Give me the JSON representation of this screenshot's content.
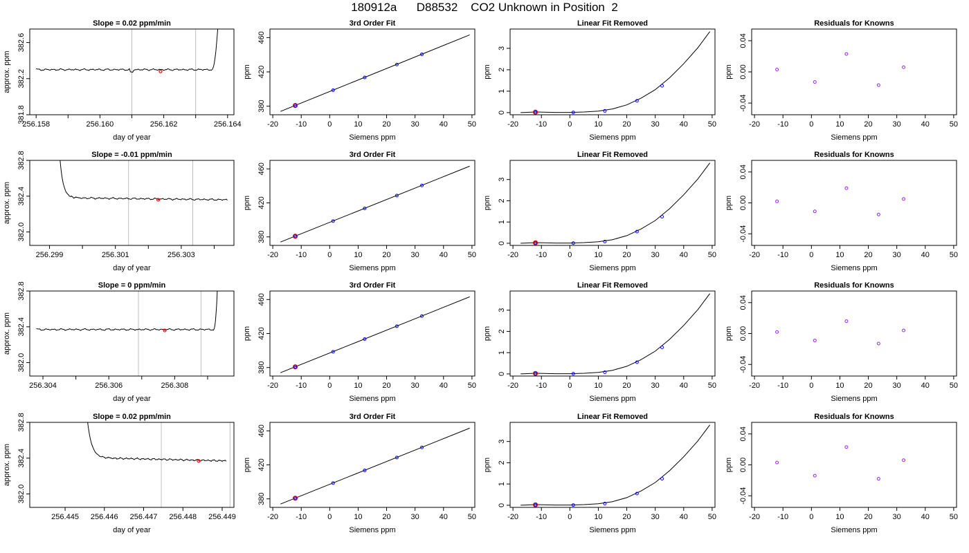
{
  "header": {
    "title": "180912a      D88532    CO2 Unknown in Position  2"
  },
  "colors": {
    "axis": "#000000",
    "curve": "#000000",
    "guide": "#bebebe",
    "known_point": "#0000ff",
    "resid_point": "#a020f0",
    "highlight": "#ff0000"
  },
  "chart_data": [
    {
      "panel": "r1c1",
      "type": "line",
      "title": "Slope =  0.02  ppm/min",
      "xlabel": "day of year",
      "ylabel": "approx. ppm",
      "xlim": [
        256.1578,
        256.1642
      ],
      "ylim": [
        381.8,
        382.75
      ],
      "xticks": [
        "256.158",
        "256.160",
        "256.162",
        "256.164"
      ],
      "xticks_minor": [
        256.159,
        256.161,
        256.163
      ],
      "yticks": [
        "381.8",
        "382.2",
        "382.6"
      ],
      "vlines": [
        256.161,
        256.163
      ],
      "series": [
        {
          "type": "noisy-trace",
          "start": [
            256.158,
            382.31
          ],
          "plateau": 382.3,
          "amp": 0.012,
          "rise_start": 256.1635,
          "rise_end": 256.1637,
          "rise_to": 382.8,
          "dip": [
            256.161,
            -0.03
          ]
        }
      ],
      "highlight": [
        256.1619,
        382.28
      ]
    },
    {
      "panel": "r1c2",
      "type": "line",
      "title": "3rd Order Fit",
      "xlabel": "Siemens ppm",
      "ylabel": "ppm",
      "xlim": [
        -21,
        51
      ],
      "ylim": [
        370,
        470
      ],
      "xticks": [
        "-20",
        "-10",
        "0",
        "10",
        "20",
        "30",
        "40",
        "50"
      ],
      "yticks": [
        "380",
        "420",
        "460"
      ],
      "line": [
        [
          -17.3,
          373.9
        ],
        [
          49.2,
          463.2
        ]
      ],
      "points": [
        [
          -12.1,
          380.8
        ],
        [
          1.2,
          398.6
        ],
        [
          12.3,
          413.5
        ],
        [
          23.6,
          428.6
        ],
        [
          32.4,
          440.5
        ]
      ],
      "highlight": [
        -12.1,
        380.8
      ]
    },
    {
      "panel": "r1c3",
      "type": "line",
      "title": "Linear Fit Removed",
      "xlabel": "Siemens ppm",
      "ylabel": "ppm",
      "xlim": [
        -21,
        51
      ],
      "ylim": [
        -0.1,
        3.9
      ],
      "xticks": [
        "-20",
        "-10",
        "0",
        "10",
        "20",
        "30",
        "40",
        "50"
      ],
      "yticks": [
        "0",
        "1",
        "2",
        "3"
      ],
      "curve": [
        [
          -17.3,
          0.0
        ],
        [
          -12,
          0.03
        ],
        [
          -5,
          0.01
        ],
        [
          0,
          0.01
        ],
        [
          5,
          0.03
        ],
        [
          10,
          0.07
        ],
        [
          15,
          0.17
        ],
        [
          20,
          0.36
        ],
        [
          25,
          0.67
        ],
        [
          30,
          1.07
        ],
        [
          35,
          1.62
        ],
        [
          40,
          2.28
        ],
        [
          45,
          3.03
        ],
        [
          49.2,
          3.78
        ]
      ],
      "points": [
        [
          -12.1,
          0.02
        ],
        [
          1.2,
          0.01
        ],
        [
          12.3,
          0.08
        ],
        [
          23.6,
          0.55
        ],
        [
          32.4,
          1.25
        ]
      ],
      "highlight": [
        -12.1,
        0.02
      ]
    },
    {
      "panel": "r1c4",
      "type": "scatter",
      "title": "Residuals for Knowns",
      "xlabel": "Siemens ppm",
      "ylabel": "ppm",
      "xlim": [
        -21,
        51
      ],
      "ylim": [
        -0.055,
        0.055
      ],
      "xticks": [
        "-20",
        "-10",
        "0",
        "10",
        "20",
        "30",
        "40",
        "50"
      ],
      "yticks": [
        "-0.04",
        "0.00",
        "0.04"
      ],
      "points": [
        [
          -12.1,
          0.003
        ],
        [
          1.2,
          -0.013
        ],
        [
          12.3,
          0.023
        ],
        [
          23.6,
          -0.017
        ],
        [
          32.4,
          0.006
        ]
      ]
    },
    {
      "panel": "r2c1",
      "type": "line",
      "title": "Slope =  -0.01  ppm/min",
      "xlabel": "day of year",
      "ylabel": "approx. ppm",
      "xlim": [
        256.2984,
        256.3046
      ],
      "ylim": [
        381.85,
        382.8
      ],
      "xticks": [
        "256.299",
        "256.301",
        "256.303"
      ],
      "xticks_minor": [
        256.3,
        256.302,
        256.304
      ],
      "yticks": [
        "382.0",
        "382.4",
        "382.8"
      ],
      "vlines": [
        256.3014,
        256.30335
      ],
      "series": [
        {
          "type": "decay-trace",
          "start_x": 256.2993,
          "start_y": 382.9,
          "decay_end": 256.2998,
          "plateau": 382.38,
          "end_plateau": 382.36,
          "amp": 0.012,
          "end": 256.3044
        }
      ],
      "highlight": [
        256.3023,
        382.36
      ]
    },
    {
      "panel": "r2c2",
      "type": "line",
      "title": "3rd Order Fit",
      "xlabel": "Siemens ppm",
      "ylabel": "ppm",
      "xlim": [
        -21,
        51
      ],
      "ylim": [
        370,
        470
      ],
      "xticks": [
        "-20",
        "-10",
        "0",
        "10",
        "20",
        "30",
        "40",
        "50"
      ],
      "yticks": [
        "380",
        "420",
        "460"
      ],
      "line": [
        [
          -17.3,
          373.9
        ],
        [
          49.2,
          463.2
        ]
      ],
      "points": [
        [
          -12.1,
          380.8
        ],
        [
          1.2,
          398.6
        ],
        [
          12.3,
          413.5
        ],
        [
          23.6,
          428.6
        ],
        [
          32.4,
          440.5
        ]
      ],
      "highlight": [
        -12.1,
        380.8
      ]
    },
    {
      "panel": "r2c3",
      "type": "line",
      "title": "Linear Fit Removed",
      "xlabel": "Siemens ppm",
      "ylabel": "ppm",
      "xlim": [
        -21,
        51
      ],
      "ylim": [
        -0.1,
        3.9
      ],
      "xticks": [
        "-20",
        "-10",
        "0",
        "10",
        "20",
        "30",
        "40",
        "50"
      ],
      "yticks": [
        "0",
        "1",
        "2",
        "3"
      ],
      "curve": [
        [
          -17.3,
          0.0
        ],
        [
          -12,
          0.03
        ],
        [
          -5,
          0.01
        ],
        [
          0,
          0.01
        ],
        [
          5,
          0.03
        ],
        [
          10,
          0.07
        ],
        [
          15,
          0.17
        ],
        [
          20,
          0.36
        ],
        [
          25,
          0.67
        ],
        [
          30,
          1.07
        ],
        [
          35,
          1.62
        ],
        [
          40,
          2.28
        ],
        [
          45,
          3.03
        ],
        [
          49.2,
          3.78
        ]
      ],
      "points": [
        [
          -12.1,
          0.02
        ],
        [
          1.2,
          0.01
        ],
        [
          12.3,
          0.08
        ],
        [
          23.6,
          0.55
        ],
        [
          32.4,
          1.25
        ]
      ],
      "highlight": [
        -12.1,
        0.02
      ]
    },
    {
      "panel": "r2c4",
      "type": "scatter",
      "title": "Residuals for Knowns",
      "xlabel": "Siemens ppm",
      "ylabel": "ppm",
      "xlim": [
        -21,
        51
      ],
      "ylim": [
        -0.055,
        0.055
      ],
      "xticks": [
        "-20",
        "-10",
        "0",
        "10",
        "20",
        "30",
        "40",
        "50"
      ],
      "yticks": [
        "-0.04",
        "0.00",
        "0.04"
      ],
      "points": [
        [
          -12.1,
          0.002
        ],
        [
          1.2,
          -0.011
        ],
        [
          12.3,
          0.019
        ],
        [
          23.6,
          -0.015
        ],
        [
          32.4,
          0.005
        ]
      ]
    },
    {
      "panel": "r3c1",
      "type": "line",
      "title": "Slope =  0  ppm/min",
      "xlabel": "day of year",
      "ylabel": "approx. ppm",
      "xlim": [
        256.3036,
        256.3098
      ],
      "ylim": [
        381.85,
        382.8
      ],
      "xticks": [
        "256.304",
        "256.306",
        "256.308"
      ],
      "xticks_minor": [
        256.305,
        256.307,
        256.309
      ],
      "yticks": [
        "382.0",
        "382.4",
        "382.8"
      ],
      "vlines": [
        256.3069,
        256.3088
      ],
      "series": [
        {
          "type": "noisy-trace",
          "start": [
            256.3038,
            382.38
          ],
          "plateau": 382.37,
          "amp": 0.012,
          "rise_start": 256.30918,
          "rise_end": 256.3093,
          "rise_to": 382.85
        }
      ],
      "highlight": [
        256.3077,
        382.36
      ]
    },
    {
      "panel": "r3c2",
      "type": "line",
      "title": "3rd Order Fit",
      "xlabel": "Siemens ppm",
      "ylabel": "ppm",
      "xlim": [
        -21,
        51
      ],
      "ylim": [
        370,
        470
      ],
      "xticks": [
        "-20",
        "-10",
        "0",
        "10",
        "20",
        "30",
        "40",
        "50"
      ],
      "yticks": [
        "380",
        "420",
        "460"
      ],
      "line": [
        [
          -17.3,
          373.9
        ],
        [
          49.2,
          463.2
        ]
      ],
      "points": [
        [
          -12.1,
          380.8
        ],
        [
          1.2,
          398.6
        ],
        [
          12.3,
          413.5
        ],
        [
          23.6,
          428.6
        ],
        [
          32.4,
          440.5
        ]
      ],
      "highlight": [
        -12.1,
        380.8
      ]
    },
    {
      "panel": "r3c3",
      "type": "line",
      "title": "Linear Fit Removed",
      "xlabel": "Siemens ppm",
      "ylabel": "ppm",
      "xlim": [
        -21,
        51
      ],
      "ylim": [
        -0.1,
        3.9
      ],
      "xticks": [
        "-20",
        "-10",
        "0",
        "10",
        "20",
        "30",
        "40",
        "50"
      ],
      "yticks": [
        "0",
        "1",
        "2",
        "3"
      ],
      "curve": [
        [
          -17.3,
          0.0
        ],
        [
          -12,
          0.03
        ],
        [
          -5,
          0.01
        ],
        [
          0,
          0.01
        ],
        [
          5,
          0.03
        ],
        [
          10,
          0.07
        ],
        [
          15,
          0.17
        ],
        [
          20,
          0.36
        ],
        [
          25,
          0.67
        ],
        [
          30,
          1.07
        ],
        [
          35,
          1.62
        ],
        [
          40,
          2.28
        ],
        [
          45,
          3.03
        ],
        [
          49.2,
          3.78
        ]
      ],
      "points": [
        [
          -12.1,
          0.02
        ],
        [
          1.2,
          0.01
        ],
        [
          12.3,
          0.08
        ],
        [
          23.6,
          0.55
        ],
        [
          32.4,
          1.25
        ]
      ],
      "highlight": [
        -12.1,
        0.02
      ]
    },
    {
      "panel": "r3c4",
      "type": "scatter",
      "title": "Residuals for Knowns",
      "xlabel": "Siemens ppm",
      "ylabel": "ppm",
      "xlim": [
        -21,
        51
      ],
      "ylim": [
        -0.055,
        0.055
      ],
      "xticks": [
        "-20",
        "-10",
        "0",
        "10",
        "20",
        "30",
        "40",
        "50"
      ],
      "yticks": [
        "-0.04",
        "0.00",
        "0.04"
      ],
      "points": [
        [
          -12.1,
          0.002
        ],
        [
          1.2,
          -0.009
        ],
        [
          12.3,
          0.016
        ],
        [
          23.6,
          -0.013
        ],
        [
          32.4,
          0.004
        ]
      ]
    },
    {
      "panel": "r4c1",
      "type": "line",
      "title": "Slope =  0.02  ppm/min",
      "xlabel": "day of year",
      "ylabel": "approx. ppm",
      "xlim": [
        256.4441,
        256.4493
      ],
      "ylim": [
        381.85,
        382.8
      ],
      "xticks": [
        "256.445",
        "256.446",
        "256.447",
        "256.448",
        "256.449"
      ],
      "xticks_minor": [],
      "yticks": [
        "382.0",
        "382.4",
        "382.8"
      ],
      "vlines": [
        256.44745,
        256.4492
      ],
      "series": [
        {
          "type": "decay-trace",
          "start_x": 256.44555,
          "start_y": 382.9,
          "decay_end": 256.4461,
          "plateau": 382.4,
          "end_plateau": 382.37,
          "amp": 0.012,
          "end": 256.4491
        }
      ],
      "highlight": [
        256.4484,
        382.37
      ]
    },
    {
      "panel": "r4c2",
      "type": "line",
      "title": "3rd Order Fit",
      "xlabel": "Siemens ppm",
      "ylabel": "ppm",
      "xlim": [
        -21,
        51
      ],
      "ylim": [
        370,
        470
      ],
      "xticks": [
        "-20",
        "-10",
        "0",
        "10",
        "20",
        "30",
        "40",
        "50"
      ],
      "yticks": [
        "380",
        "420",
        "460"
      ],
      "line": [
        [
          -17.3,
          373.9
        ],
        [
          49.2,
          463.2
        ]
      ],
      "points": [
        [
          -12.1,
          380.8
        ],
        [
          1.2,
          398.6
        ],
        [
          12.3,
          413.5
        ],
        [
          23.6,
          428.6
        ],
        [
          32.4,
          440.5
        ]
      ],
      "highlight": [
        -12.1,
        380.8
      ]
    },
    {
      "panel": "r4c3",
      "type": "line",
      "title": "Linear Fit Removed",
      "xlabel": "Siemens ppm",
      "ylabel": "ppm",
      "xlim": [
        -21,
        51
      ],
      "ylim": [
        -0.1,
        3.9
      ],
      "xticks": [
        "-20",
        "-10",
        "0",
        "10",
        "20",
        "30",
        "40",
        "50"
      ],
      "yticks": [
        "0",
        "1",
        "2",
        "3"
      ],
      "curve": [
        [
          -17.3,
          0.0
        ],
        [
          -12,
          0.03
        ],
        [
          -5,
          0.01
        ],
        [
          0,
          0.01
        ],
        [
          5,
          0.03
        ],
        [
          10,
          0.07
        ],
        [
          15,
          0.17
        ],
        [
          20,
          0.36
        ],
        [
          25,
          0.67
        ],
        [
          30,
          1.07
        ],
        [
          35,
          1.62
        ],
        [
          40,
          2.28
        ],
        [
          45,
          3.03
        ],
        [
          49.2,
          3.78
        ]
      ],
      "points": [
        [
          -12.1,
          0.02
        ],
        [
          1.2,
          0.01
        ],
        [
          12.3,
          0.08
        ],
        [
          23.6,
          0.55
        ],
        [
          32.4,
          1.25
        ]
      ],
      "highlight": [
        -12.1,
        0.02
      ]
    },
    {
      "panel": "r4c4",
      "type": "scatter",
      "title": "Residuals for Knowns",
      "xlabel": "Siemens ppm",
      "ylabel": "ppm",
      "xlim": [
        -21,
        51
      ],
      "ylim": [
        -0.055,
        0.055
      ],
      "xticks": [
        "-20",
        "-10",
        "0",
        "10",
        "20",
        "30",
        "40",
        "50"
      ],
      "yticks": [
        "-0.04",
        "0.00",
        "0.04"
      ],
      "points": [
        [
          -12.1,
          0.003
        ],
        [
          1.2,
          -0.014
        ],
        [
          12.3,
          0.023
        ],
        [
          23.6,
          -0.018
        ],
        [
          32.4,
          0.006
        ]
      ]
    }
  ]
}
